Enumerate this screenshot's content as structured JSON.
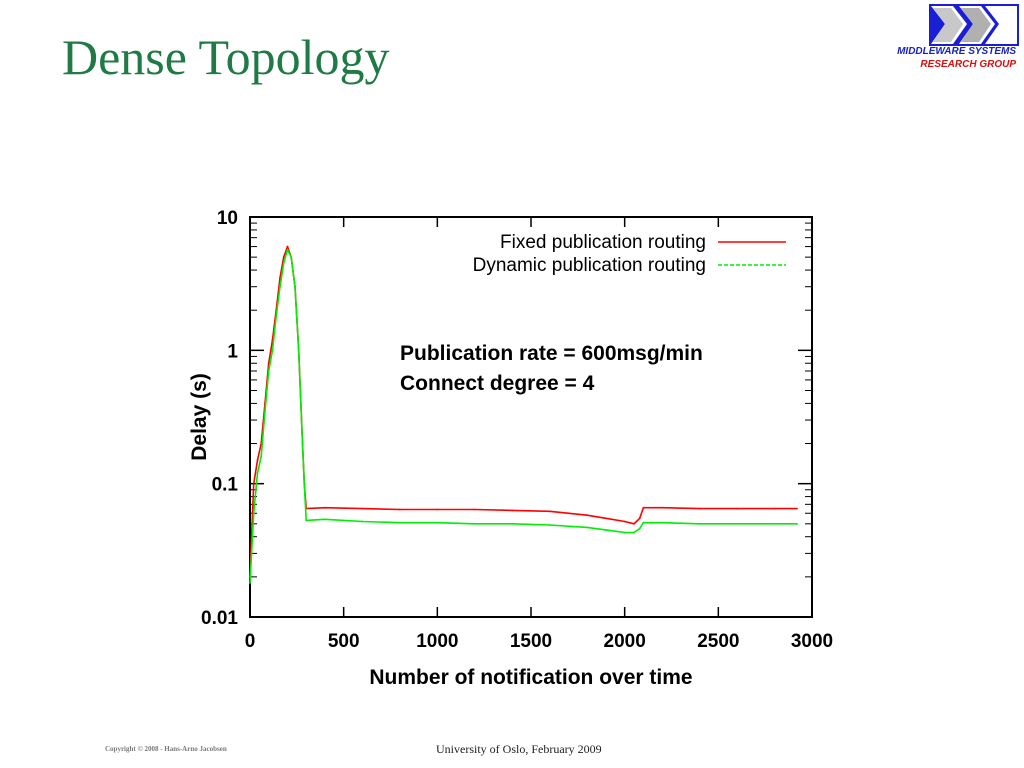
{
  "slide": {
    "title": "Dense Topology",
    "logo_line1": "MIDDLEWARE SYSTEMS",
    "logo_line2": "RESEARCH GROUP",
    "footer_copyright": "Copyright © 2008 - Hans-Arno Jacobsen",
    "footer_center": "University of Oslo, February 2009"
  },
  "chart_data": {
    "type": "line",
    "title": "",
    "xlabel": "Number of notification over time",
    "ylabel": "Delay (s)",
    "xlim": [
      0,
      3000
    ],
    "ylim": [
      0.01,
      10
    ],
    "yscale": "log",
    "grid": false,
    "legend_position": "top-right",
    "x_ticks": [
      0,
      500,
      1000,
      1500,
      2000,
      2500,
      3000
    ],
    "y_ticks": [
      0.01,
      0.1,
      1,
      10
    ],
    "y_tick_labels": [
      "0.01",
      "0.1",
      "1",
      "10"
    ],
    "annotations": [
      "Publication rate = 600msg/min",
      "Connect degree = 4"
    ],
    "series": [
      {
        "name": "Fixed publication routing",
        "color": "#ff0000",
        "style": "solid",
        "x": [
          0,
          20,
          40,
          60,
          80,
          100,
          120,
          140,
          160,
          180,
          200,
          220,
          240,
          260,
          280,
          290,
          300,
          400,
          600,
          800,
          1000,
          1200,
          1400,
          1600,
          1800,
          1900,
          2000,
          2050,
          2080,
          2100,
          2200,
          2400,
          2600,
          2800,
          2920
        ],
        "y": [
          0.02,
          0.1,
          0.15,
          0.2,
          0.4,
          0.8,
          1.2,
          2.0,
          3.5,
          5.0,
          6.0,
          5.0,
          3.0,
          1.0,
          0.2,
          0.1,
          0.065,
          0.066,
          0.065,
          0.064,
          0.064,
          0.064,
          0.063,
          0.062,
          0.058,
          0.055,
          0.052,
          0.05,
          0.055,
          0.066,
          0.066,
          0.065,
          0.065,
          0.065,
          0.065
        ]
      },
      {
        "name": "Dynamic publication routing",
        "color": "#00ee00",
        "style": "dashed",
        "x": [
          0,
          20,
          40,
          60,
          80,
          100,
          120,
          140,
          160,
          180,
          200,
          220,
          240,
          260,
          280,
          290,
          300,
          400,
          600,
          800,
          1000,
          1200,
          1400,
          1600,
          1800,
          1900,
          2000,
          2050,
          2080,
          2100,
          2200,
          2400,
          2600,
          2800,
          2920
        ],
        "y": [
          0.018,
          0.06,
          0.12,
          0.16,
          0.35,
          0.7,
          1.0,
          1.8,
          3.0,
          4.5,
          5.7,
          5.0,
          3.0,
          1.0,
          0.2,
          0.1,
          0.053,
          0.054,
          0.052,
          0.051,
          0.051,
          0.05,
          0.05,
          0.049,
          0.047,
          0.045,
          0.043,
          0.043,
          0.046,
          0.051,
          0.051,
          0.05,
          0.05,
          0.05,
          0.05
        ]
      }
    ]
  }
}
